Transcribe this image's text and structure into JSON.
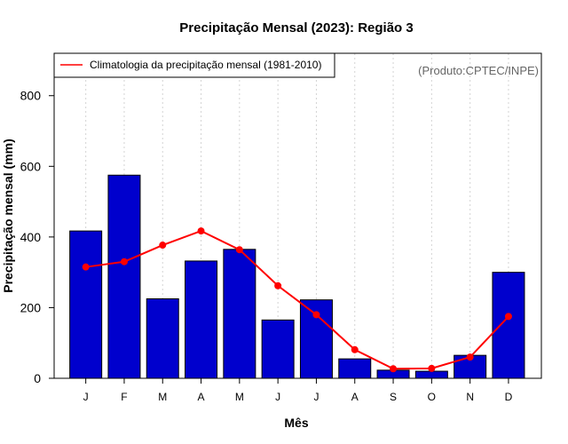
{
  "chart_data": {
    "type": "bar",
    "title": "Precipitação Mensal (2023): Região 3",
    "xlabel": "Mês",
    "ylabel": "Precipitação mensal (mm)",
    "ylim": [
      0,
      920
    ],
    "yticks": [
      0,
      200,
      400,
      600,
      800
    ],
    "categories": [
      "J",
      "F",
      "M",
      "A",
      "M",
      "J",
      "J",
      "A",
      "S",
      "O",
      "N",
      "D"
    ],
    "series": [
      {
        "name": "Precipitação mensal (2023)",
        "type": "bar",
        "color": "#0000CD",
        "values": [
          417,
          575,
          225,
          332,
          365,
          165,
          222,
          55,
          23,
          20,
          65,
          300
        ]
      },
      {
        "name": "Climatologia da precipitação mensal (1981-2010)",
        "type": "line",
        "color": "#FF0000",
        "values": [
          315,
          330,
          377,
          417,
          364,
          262,
          180,
          81,
          27,
          28,
          60,
          175
        ]
      }
    ],
    "grid": "vertical-dotted",
    "legend": {
      "position": "top-left",
      "entries": [
        "Climatologia da precipitação mensal (1981-2010)"
      ]
    },
    "annotation": "(Produto:CPTEC/INPE)"
  }
}
